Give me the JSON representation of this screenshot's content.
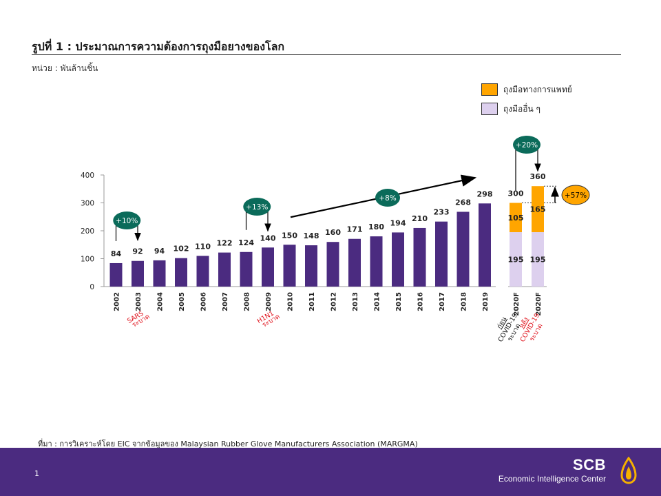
{
  "header": {
    "title": "รูปที่ 1 : ประมาณการความต้องการถุงมือยางของโลก",
    "unit": "หน่วย : พันล้านชิ้น"
  },
  "legend": {
    "medical": "ถุงมือทางการแพทย์",
    "other": "ถุงมืออื่น ๆ"
  },
  "colors": {
    "bar": "#4b2b80",
    "medical": "#ffa500",
    "other": "#ddd0ee",
    "annotation": "#0b6b5a",
    "event": "#e0101a"
  },
  "chart_data": {
    "type": "bar",
    "ylim": [
      0,
      400
    ],
    "yticks": [
      0,
      100,
      200,
      300,
      400
    ],
    "categories": [
      "2002",
      "2003",
      "2004",
      "2005",
      "2006",
      "2007",
      "2008",
      "2009",
      "2010",
      "2011",
      "2012",
      "2013",
      "2014",
      "2015",
      "2016",
      "2017",
      "2018",
      "2019"
    ],
    "values": [
      84,
      92,
      94,
      102,
      110,
      122,
      124,
      140,
      150,
      148,
      160,
      171,
      180,
      194,
      210,
      233,
      268,
      298
    ],
    "forecast": {
      "categories": [
        "2020F",
        "2020F"
      ],
      "totals": [
        300,
        360
      ],
      "series": [
        {
          "name": "ถุงมืออื่น ๆ",
          "values": [
            195,
            195
          ]
        },
        {
          "name": "ถุงมือทางการแพทย์",
          "values": [
            105,
            165
          ]
        }
      ],
      "notes": [
        [
          "ก่อน",
          "COVID-19",
          "ระบาด"
        ],
        [
          "หลัง",
          "COVID-19",
          "ระบาด"
        ]
      ]
    },
    "events": [
      {
        "category": "2003",
        "lines": [
          "SARS",
          "ระบาด"
        ]
      },
      {
        "category": "2009",
        "lines": [
          "H1N1",
          "ระบาด"
        ]
      }
    ],
    "growth_badges": [
      "+10%",
      "+13%",
      "+8%",
      "+20%",
      "+57%"
    ]
  },
  "footer": {
    "source": "ที่มา : การวิเคราะห์โดย EIC จากข้อมูลของ Malaysian Rubber Glove Manufacturers Association (MARGMA)",
    "page": "1",
    "brand": "SCB",
    "brand_sub": "Economic Intelligence Center"
  }
}
